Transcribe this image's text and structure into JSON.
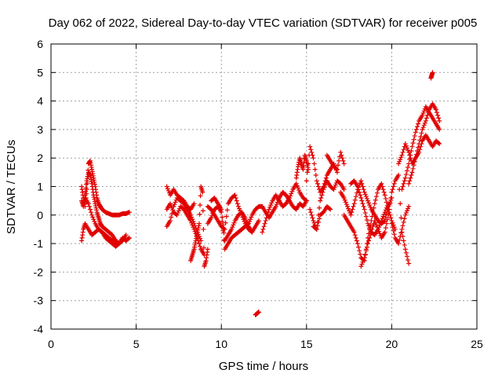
{
  "chart_data": {
    "type": "scatter",
    "title": "Day 062 of 2022, Sidereal Day-to-day VTEC variation (SDTVAR) for receiver p005",
    "xlabel": "GPS time / hours",
    "ylabel": "SDTVAR / TECUs",
    "xlim": [
      0,
      25
    ],
    "ylim": [
      -4,
      6
    ],
    "xticks": [
      "0",
      "5",
      "10",
      "15",
      "20",
      "25"
    ],
    "yticks": [
      "-4",
      "-3",
      "-2",
      "-1",
      "0",
      "1",
      "2",
      "3",
      "4",
      "5",
      "6"
    ],
    "grid": true,
    "marker": "+",
    "color": "#e00000",
    "series": [
      {
        "name": "p005",
        "segments": [
          {
            "x": [
              1.8,
              1.9,
              2.0,
              2.1,
              2.2,
              2.3,
              2.4,
              2.5,
              2.6,
              2.7,
              2.8,
              2.9,
              3.0,
              3.2,
              3.4,
              3.6,
              3.8,
              4.0,
              4.2,
              4.4,
              4.6
            ],
            "y": [
              1.0,
              0.6,
              0.3,
              0.9,
              1.8,
              1.9,
              1.6,
              1.3,
              1.0,
              0.6,
              0.4,
              0.3,
              0.2,
              0.1,
              0.05,
              0.0,
              0.0,
              0.0,
              0.05,
              0.05,
              0.1
            ]
          },
          {
            "x": [
              1.8,
              1.9,
              2.0,
              2.1,
              2.2,
              2.3,
              2.4,
              2.5,
              2.6,
              2.7,
              2.8,
              2.9,
              3.0,
              3.2,
              3.4,
              3.6,
              3.8,
              4.0
            ],
            "y": [
              0.5,
              0.3,
              0.7,
              1.2,
              1.5,
              1.4,
              1.1,
              0.7,
              0.4,
              0.1,
              -0.1,
              -0.3,
              -0.4,
              -0.5,
              -0.6,
              -0.7,
              -0.9,
              -1.0
            ]
          },
          {
            "x": [
              1.8,
              1.9,
              2.0,
              2.2,
              2.4,
              2.6,
              2.8,
              3.0,
              3.2,
              3.4,
              3.6,
              3.8,
              4.0,
              4.2,
              4.4,
              4.6
            ],
            "y": [
              -0.9,
              -0.5,
              -0.3,
              -0.5,
              -0.7,
              -0.6,
              -0.5,
              -0.6,
              -0.8,
              -0.9,
              -1.0,
              -1.1,
              -1.0,
              -0.8,
              -0.9,
              -0.8
            ]
          },
          {
            "x": [
              2.0,
              2.2,
              2.4,
              2.6,
              2.8,
              3.0,
              3.2,
              3.4,
              3.6,
              3.8,
              4.0,
              4.2,
              4.4
            ],
            "y": [
              0.6,
              0.4,
              0.0,
              -0.3,
              -0.5,
              -0.6,
              -0.7,
              -0.8,
              -0.9,
              -0.95,
              -1.0,
              -0.9,
              -0.7
            ]
          },
          {
            "x": [
              6.8,
              7.0,
              7.2,
              7.4,
              7.6,
              7.8,
              8.0,
              8.2,
              8.4
            ],
            "y": [
              1.0,
              0.7,
              0.9,
              0.7,
              0.6,
              0.5,
              0.3,
              0.2,
              0.4
            ]
          },
          {
            "x": [
              6.8,
              7.0,
              7.2,
              7.4,
              7.6,
              7.8,
              8.0,
              8.2,
              8.4,
              8.6,
              8.8,
              9.0
            ],
            "y": [
              0.2,
              0.4,
              0.1,
              0.0,
              0.3,
              0.2,
              0.0,
              -0.2,
              -0.5,
              -0.8,
              -1.2,
              -1.4
            ]
          },
          {
            "x": [
              6.8,
              7.0,
              7.2,
              7.4,
              7.6,
              7.8,
              8.0,
              8.2,
              8.4,
              8.6,
              8.8
            ],
            "y": [
              -0.4,
              -0.2,
              0.3,
              0.6,
              0.5,
              0.4,
              0.2,
              0.0,
              -0.3,
              -0.6,
              -0.9
            ]
          },
          {
            "x": [
              8.2,
              8.3,
              8.4,
              8.5,
              8.6,
              8.7,
              8.8,
              8.9,
              9.0,
              9.1,
              9.2
            ],
            "y": [
              -1.6,
              -1.4,
              -1.2,
              -0.9,
              -0.6,
              -0.3,
              1.0,
              0.8,
              -1.8,
              -1.6,
              -1.2
            ]
          },
          {
            "x": [
              9.2,
              9.4,
              9.6,
              9.8,
              10.0,
              10.2,
              10.4,
              10.6,
              10.8,
              11.0,
              11.2,
              11.4,
              11.6,
              11.8,
              12.0,
              12.2
            ],
            "y": [
              0.3,
              0.2,
              0.0,
              -0.2,
              -0.4,
              -0.5,
              0.4,
              0.6,
              0.7,
              0.3,
              0.0,
              -0.3,
              -0.5,
              -0.6,
              -0.4,
              -0.2
            ]
          },
          {
            "x": [
              9.2,
              9.4,
              9.6,
              9.8,
              10.0,
              10.2,
              10.4,
              10.6,
              10.8,
              11.0,
              11.2,
              11.4,
              11.6,
              11.8,
              12.0,
              12.2,
              12.4
            ],
            "y": [
              -0.3,
              -0.1,
              0.2,
              0.3,
              0.1,
              -1.2,
              -1.0,
              -0.8,
              -0.7,
              -0.6,
              -0.5,
              -0.4,
              -0.3,
              0.0,
              0.2,
              0.3,
              0.3
            ]
          },
          {
            "x": [
              9.4,
              9.6,
              9.8,
              10.0,
              10.2,
              10.4,
              10.6,
              10.8,
              11.0,
              11.2,
              11.4,
              11.6,
              11.8
            ],
            "y": [
              0.5,
              0.6,
              0.4,
              0.2,
              -0.9,
              -0.7,
              -0.5,
              -0.2,
              0.0,
              0.1,
              -0.1,
              -0.4,
              -0.6
            ]
          },
          {
            "x": [
              12.0,
              12.1,
              12.2
            ],
            "y": [
              -3.5,
              -3.45,
              -3.4
            ]
          },
          {
            "x": [
              12.4,
              12.6,
              12.8,
              13.0,
              13.2,
              13.4,
              13.6,
              13.8,
              14.0,
              14.2,
              14.4,
              14.6,
              14.8,
              15.0
            ],
            "y": [
              -0.6,
              -0.2,
              0.2,
              0.5,
              0.7,
              0.5,
              0.3,
              0.4,
              0.6,
              0.9,
              1.1,
              0.8,
              0.6,
              0.5
            ]
          },
          {
            "x": [
              12.4,
              12.6,
              12.8,
              13.0,
              13.2,
              13.4,
              13.6,
              13.8,
              14.0,
              14.2,
              14.4,
              14.6,
              14.8,
              15.0
            ],
            "y": [
              0.3,
              0.1,
              -0.1,
              0.1,
              0.3,
              0.6,
              0.8,
              0.7,
              0.5,
              0.3,
              0.2,
              0.4,
              0.3,
              0.5
            ]
          },
          {
            "x": [
              14.4,
              14.5,
              14.6,
              14.7,
              14.8,
              14.9,
              15.0,
              15.1
            ],
            "y": [
              1.3,
              1.7,
              2.0,
              1.8,
              1.6,
              2.1,
              1.9,
              1.6
            ]
          },
          {
            "x": [
              15.0,
              15.2,
              15.4,
              15.6,
              15.8,
              16.0,
              16.2,
              16.4,
              16.6,
              16.8
            ],
            "y": [
              1.2,
              2.4,
              2.0,
              1.2,
              0.8,
              1.0,
              1.4,
              1.6,
              1.8,
              1.5
            ]
          },
          {
            "x": [
              15.2,
              15.4,
              15.6,
              15.8,
              16.0,
              16.2,
              16.4,
              16.6,
              16.8,
              17.0,
              17.2
            ],
            "y": [
              0.2,
              -0.2,
              -0.5,
              0.5,
              0.9,
              1.2,
              1.0,
              0.9,
              1.2,
              1.1,
              0.9
            ]
          },
          {
            "x": [
              15.4,
              15.6,
              15.8,
              16.0,
              16.2,
              16.4
            ],
            "y": [
              -0.4,
              -0.5,
              0.0,
              0.1,
              0.3,
              0.2
            ]
          },
          {
            "x": [
              16.2,
              16.4,
              16.6,
              16.8,
              17.0,
              17.2
            ],
            "y": [
              2.1,
              1.9,
              1.7,
              1.6,
              2.2,
              1.8
            ]
          },
          {
            "x": [
              17.0,
              17.2,
              17.4,
              17.6,
              17.8,
              18.0,
              18.2,
              18.4,
              18.6,
              18.8,
              19.0,
              19.2,
              19.4,
              19.6,
              19.8,
              20.0
            ],
            "y": [
              0.8,
              0.6,
              0.3,
              0.0,
              0.4,
              0.9,
              1.2,
              0.8,
              0.5,
              0.2,
              0.0,
              -0.2,
              -0.3,
              -0.2,
              0.3,
              0.6
            ]
          },
          {
            "x": [
              17.2,
              17.4,
              17.6,
              17.8,
              18.0,
              18.2,
              18.4,
              18.6,
              18.8,
              19.0,
              19.2,
              19.4,
              19.6,
              19.8,
              20.0,
              20.2
            ],
            "y": [
              0.0,
              -0.2,
              -0.4,
              -0.6,
              -1.0,
              -1.5,
              -1.6,
              -0.8,
              -0.2,
              0.4,
              0.9,
              1.1,
              0.7,
              0.2,
              -0.2,
              -0.5
            ]
          },
          {
            "x": [
              17.6,
              17.8,
              18.0,
              18.2,
              18.4,
              18.6,
              18.8,
              19.0,
              19.2,
              19.4,
              19.6,
              19.8
            ],
            "y": [
              1.1,
              1.2,
              1.0,
              0.6,
              0.2,
              -0.3,
              -0.6,
              -0.7,
              -0.5,
              -0.2,
              0.1,
              0.4
            ]
          },
          {
            "x": [
              18.2,
              18.4,
              18.6,
              18.8,
              19.0,
              19.2,
              19.4,
              19.6,
              19.8,
              20.0,
              20.2,
              20.4,
              20.6,
              20.8,
              21.0
            ],
            "y": [
              -1.8,
              -1.5,
              -1.0,
              -0.6,
              -0.2,
              -0.5,
              -0.8,
              -0.6,
              0.0,
              0.8,
              1.2,
              1.4,
              -0.6,
              -1.2,
              -1.7
            ]
          },
          {
            "x": [
              20.0,
              20.2,
              20.4,
              20.6,
              20.8,
              21.0
            ],
            "y": [
              -0.3,
              -0.8,
              -1.0,
              -0.5,
              0.0,
              0.3
            ]
          },
          {
            "x": [
              20.4,
              20.6,
              20.8,
              21.0,
              21.2,
              21.4,
              21.6,
              21.8,
              22.0,
              22.2,
              22.4,
              22.6,
              22.8
            ],
            "y": [
              1.8,
              2.1,
              2.5,
              2.2,
              1.8,
              2.0,
              2.2,
              2.6,
              2.8,
              2.6,
              2.4,
              2.6,
              2.5
            ]
          },
          {
            "x": [
              20.6,
              20.8,
              21.0,
              21.2,
              21.4,
              21.6,
              21.8,
              22.0,
              22.2,
              22.4,
              22.6,
              22.8
            ],
            "y": [
              0.9,
              1.3,
              1.8,
              2.4,
              2.9,
              3.3,
              3.5,
              3.8,
              3.6,
              3.4,
              3.2,
              3.0
            ]
          },
          {
            "x": [
              21.0,
              21.2,
              21.4,
              21.6,
              21.8,
              22.0,
              22.2,
              22.4,
              22.6,
              22.8
            ],
            "y": [
              1.1,
              1.5,
              2.0,
              2.5,
              3.0,
              3.3,
              3.7,
              3.9,
              3.7,
              3.3
            ]
          },
          {
            "x": [
              22.3,
              22.35,
              22.4
            ],
            "y": [
              4.8,
              4.9,
              5.0
            ]
          }
        ]
      }
    ]
  }
}
